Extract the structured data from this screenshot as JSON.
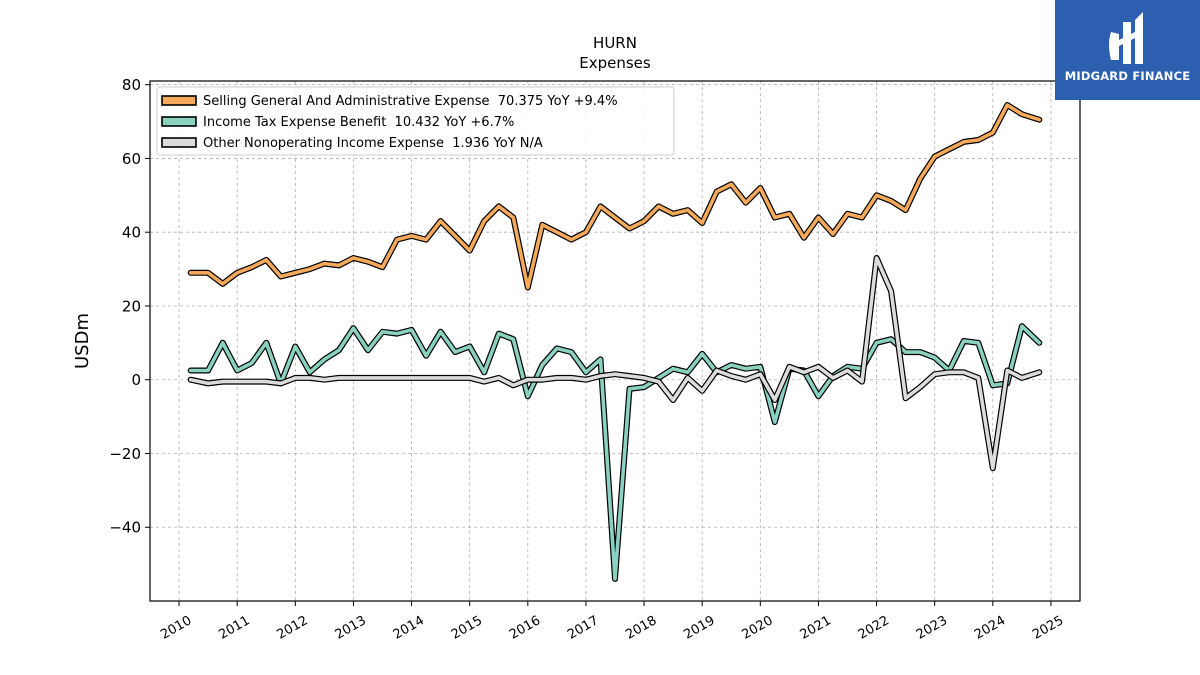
{
  "chart_data": {
    "type": "line",
    "title": "HURN",
    "subtitle": "Expenses",
    "ylabel": "USDm",
    "xlim": [
      2009.5,
      2025.5
    ],
    "ylim": [
      -60,
      81
    ],
    "yticks": [
      80,
      60,
      40,
      20,
      0,
      -20,
      -40
    ],
    "ytick_labels": [
      "80",
      "60",
      "40",
      "20",
      "0",
      "−20",
      "−40"
    ],
    "xticks": [
      2010,
      2011,
      2012,
      2013,
      2014,
      2015,
      2016,
      2017,
      2018,
      2019,
      2020,
      2021,
      2022,
      2023,
      2024,
      2025
    ],
    "xtick_labels": [
      "2010",
      "2011",
      "2012",
      "2013",
      "2014",
      "2015",
      "2016",
      "2017",
      "2018",
      "2019",
      "2020",
      "2021",
      "2022",
      "2023",
      "2024",
      "2025"
    ],
    "grid": true,
    "legend_position": "upper-left",
    "series": [
      {
        "name": "Selling General And Administrative Expense  70.375 YoY +9.4%",
        "color": "#f5a95b",
        "x": [
          2010.2,
          2010.5,
          2010.75,
          2011.0,
          2011.25,
          2011.5,
          2011.75,
          2012.0,
          2012.25,
          2012.5,
          2012.75,
          2013.0,
          2013.25,
          2013.5,
          2013.75,
          2014.0,
          2014.25,
          2014.5,
          2014.75,
          2015.0,
          2015.25,
          2015.5,
          2015.75,
          2016.0,
          2016.25,
          2016.5,
          2016.75,
          2017.0,
          2017.25,
          2017.5,
          2017.75,
          2018.0,
          2018.25,
          2018.5,
          2018.75,
          2019.0,
          2019.25,
          2019.5,
          2019.75,
          2020.0,
          2020.25,
          2020.5,
          2020.75,
          2021.0,
          2021.25,
          2021.5,
          2021.75,
          2022.0,
          2022.25,
          2022.5,
          2022.75,
          2023.0,
          2023.25,
          2023.5,
          2023.75,
          2024.0,
          2024.25,
          2024.5,
          2024.8
        ],
        "y": [
          29,
          29,
          26,
          29,
          30.5,
          32.5,
          28,
          29,
          30,
          31.5,
          31,
          33,
          32,
          30.5,
          38,
          39,
          38,
          43,
          39,
          35,
          43,
          47,
          44,
          25,
          42,
          40,
          38,
          40,
          47,
          44,
          41,
          43,
          47,
          45,
          46,
          42.5,
          51,
          53,
          48,
          52,
          44,
          45,
          38.5,
          44,
          39.5,
          45,
          44,
          50,
          48.5,
          46,
          54.5,
          60.5,
          62.5,
          64.5,
          65,
          67,
          74.5,
          72,
          70.5
        ]
      },
      {
        "name": "Income Tax Expense Benefit  10.432 YoY +6.7%",
        "color": "#8ad1c0",
        "x": [
          2010.2,
          2010.5,
          2010.75,
          2011.0,
          2011.25,
          2011.5,
          2011.75,
          2012.0,
          2012.25,
          2012.5,
          2012.75,
          2013.0,
          2013.25,
          2013.5,
          2013.75,
          2014.0,
          2014.25,
          2014.5,
          2014.75,
          2015.0,
          2015.25,
          2015.5,
          2015.75,
          2016.0,
          2016.25,
          2016.5,
          2016.75,
          2017.0,
          2017.25,
          2017.5,
          2017.75,
          2018.0,
          2018.25,
          2018.5,
          2018.75,
          2019.0,
          2019.25,
          2019.5,
          2019.75,
          2020.0,
          2020.25,
          2020.5,
          2020.75,
          2021.0,
          2021.25,
          2021.5,
          2021.75,
          2022.0,
          2022.25,
          2022.5,
          2022.75,
          2023.0,
          2023.25,
          2023.5,
          2023.75,
          2024.0,
          2024.25,
          2024.5,
          2024.8
        ],
        "y": [
          2.5,
          2.5,
          10,
          2.5,
          4.5,
          10,
          -1,
          9,
          2,
          5.5,
          8,
          14,
          8,
          13,
          12.5,
          13.5,
          6.5,
          13,
          7.5,
          9,
          2,
          12.5,
          11,
          -4.5,
          4,
          8.5,
          7.5,
          2,
          5.5,
          -54,
          -2.5,
          -2,
          0.5,
          3,
          2,
          7,
          2,
          4,
          3,
          3.5,
          -11.5,
          3,
          2.5,
          -4.5,
          1,
          3.5,
          3,
          10,
          11,
          7.5,
          7.5,
          6,
          2.5,
          10.5,
          10,
          -1.5,
          -1,
          14.5,
          10
        ]
      },
      {
        "name": "Other Nonoperating Income Expense  1.936 YoY N/A",
        "color": "#dcdcdc",
        "x": [
          2010.2,
          2010.5,
          2010.75,
          2011.0,
          2011.25,
          2011.5,
          2011.75,
          2012.0,
          2012.25,
          2012.5,
          2012.75,
          2013.0,
          2013.25,
          2013.5,
          2013.75,
          2014.0,
          2014.25,
          2014.5,
          2014.75,
          2015.0,
          2015.25,
          2015.5,
          2015.75,
          2016.0,
          2016.25,
          2016.5,
          2016.75,
          2017.0,
          2017.25,
          2017.5,
          2017.75,
          2018.0,
          2018.25,
          2018.5,
          2018.75,
          2019.0,
          2019.25,
          2019.5,
          2019.75,
          2020.0,
          2020.25,
          2020.5,
          2020.75,
          2021.0,
          2021.25,
          2021.5,
          2021.75,
          2022.0,
          2022.25,
          2022.5,
          2022.75,
          2023.0,
          2023.25,
          2023.5,
          2023.75,
          2024.0,
          2024.25,
          2024.5,
          2024.8
        ],
        "y": [
          0,
          -1,
          -0.5,
          -0.5,
          -0.5,
          -0.5,
          -1,
          0.5,
          0.5,
          0,
          0.5,
          0.5,
          0.5,
          0.5,
          0.5,
          0.5,
          0.5,
          0.5,
          0.5,
          0.5,
          -0.5,
          0.5,
          -1.5,
          0,
          0,
          0.5,
          0.5,
          0,
          1,
          1.5,
          1,
          0.5,
          -0.5,
          -5.5,
          0.5,
          -3,
          2.5,
          1,
          0,
          1.5,
          -5.5,
          3.5,
          2,
          3.5,
          0.5,
          2.5,
          -0.5,
          33,
          24,
          -5,
          -2,
          1.5,
          2,
          2,
          0.5,
          -24,
          2.5,
          0.5,
          2
        ]
      }
    ]
  },
  "logo": {
    "text": "MIDGARD FINANCE",
    "background": "#2d5fb0"
  }
}
